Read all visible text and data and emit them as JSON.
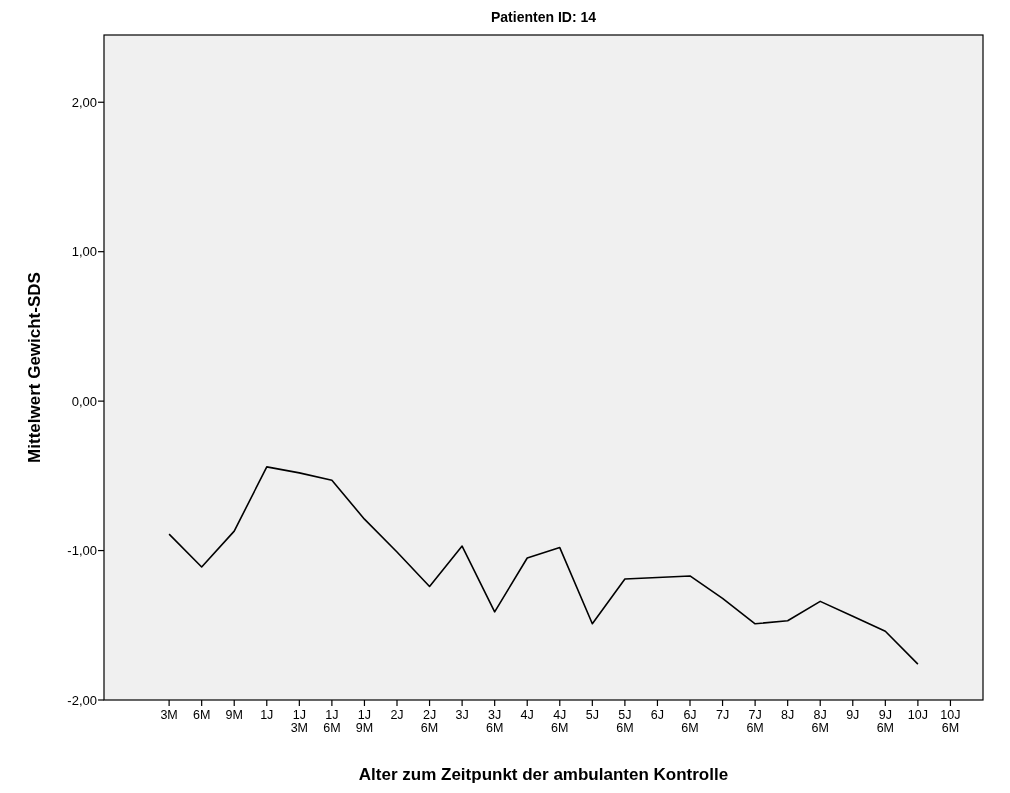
{
  "chart_data": {
    "type": "line",
    "title": "Patienten ID: 14",
    "xlabel": "Alter zum Zeitpunkt der ambulanten Kontrolle",
    "ylabel": "Mittelwert Gewicht-SDS",
    "categories": [
      "3M",
      "6M",
      "9M",
      "1J",
      "1J\n3M",
      "1J\n6M",
      "1J\n9M",
      "2J",
      "2J\n6M",
      "3J",
      "3J\n6M",
      "4J",
      "4J\n6M",
      "5J",
      "5J\n6M",
      "6J",
      "6J\n6M",
      "7J",
      "7J\n6M",
      "8J",
      "8J\n6M",
      "9J",
      "9J\n6M",
      "10J",
      "10J\n6M"
    ],
    "series": [
      {
        "color": "#000000",
        "values": [
          -0.89,
          -1.11,
          -0.87,
          -0.44,
          -0.48,
          -0.53,
          -0.79,
          -1.01,
          -1.24,
          -0.97,
          -1.41,
          -1.05,
          -0.98,
          -1.49,
          -1.19,
          -1.18,
          -1.17,
          -1.32,
          -1.49,
          -1.47,
          -1.34,
          -1.44,
          -1.54,
          -1.76,
          null
        ]
      }
    ],
    "ylim": [
      -2,
      2.45
    ],
    "yticks": [
      {
        "value": -2,
        "label": "-2,00"
      },
      {
        "value": -1,
        "label": "-1,00"
      },
      {
        "value": 0,
        "label": "0,00"
      },
      {
        "value": 1,
        "label": "1,00"
      },
      {
        "value": 2,
        "label": "2,00"
      }
    ],
    "grid": false,
    "marker": "none",
    "line_style": "solid"
  }
}
